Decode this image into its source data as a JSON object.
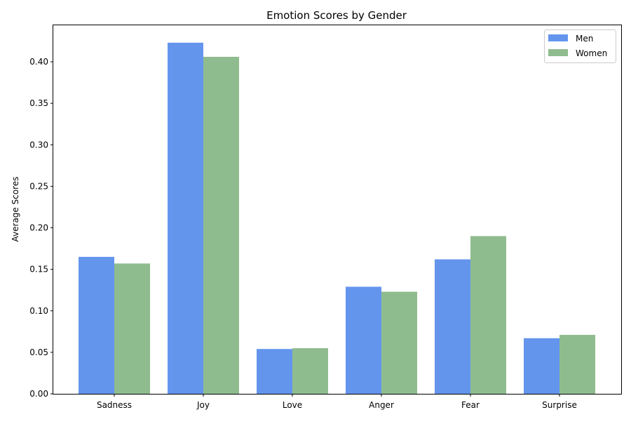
{
  "chart_data": {
    "type": "bar",
    "title": "Emotion Scores by Gender",
    "xlabel": "",
    "ylabel": "Average Scores",
    "categories": [
      "Sadness",
      "Joy",
      "Love",
      "Anger",
      "Fear",
      "Surprise"
    ],
    "series": [
      {
        "name": "Men",
        "color": "#6495ED",
        "values": [
          0.165,
          0.423,
          0.054,
          0.129,
          0.162,
          0.067
        ]
      },
      {
        "name": "Women",
        "color": "#8FBC8F",
        "values": [
          0.157,
          0.406,
          0.055,
          0.123,
          0.19,
          0.071
        ]
      }
    ],
    "ylim": [
      0,
      0.444
    ],
    "yticks": [
      "0.00",
      "0.05",
      "0.10",
      "0.15",
      "0.20",
      "0.25",
      "0.30",
      "0.35",
      "0.40"
    ],
    "grid": false,
    "legend": "top-right"
  }
}
